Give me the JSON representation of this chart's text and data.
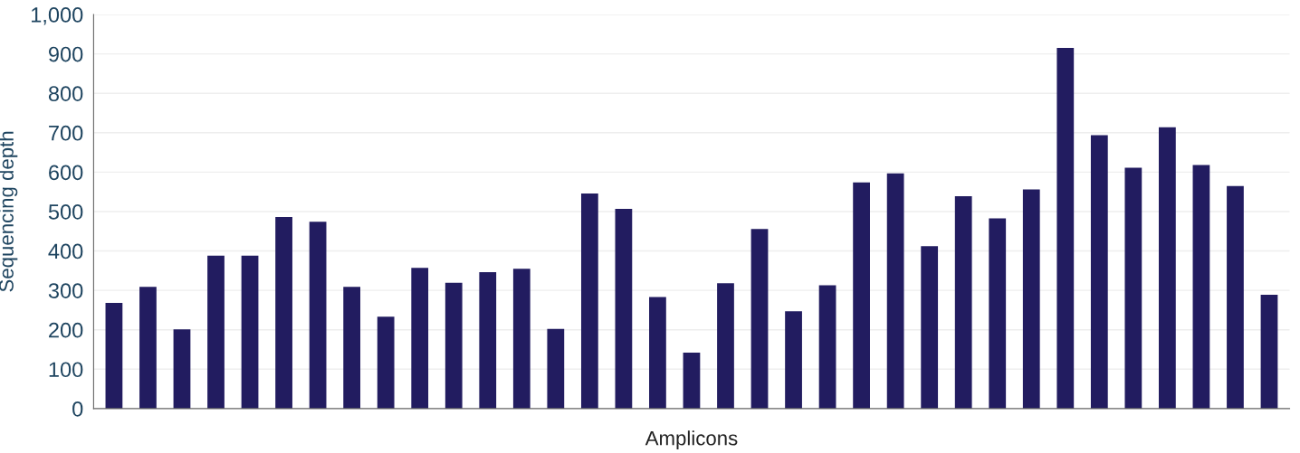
{
  "chart_data": {
    "type": "bar",
    "xlabel": "Amplicons",
    "ylabel": "Sequencing depth",
    "categories": [
      null,
      null,
      null,
      null,
      null,
      null,
      null,
      null,
      null,
      null,
      null,
      null,
      null,
      null,
      null,
      null,
      null,
      null,
      null,
      null,
      null,
      null,
      null,
      null,
      null,
      null,
      null,
      null,
      null,
      null,
      null,
      null,
      null,
      null,
      null
    ],
    "values": [
      268,
      309,
      201,
      388,
      388,
      486,
      474,
      309,
      233,
      357,
      319,
      346,
      355,
      202,
      546,
      507,
      283,
      142,
      318,
      456,
      247,
      313,
      574,
      597,
      412,
      539,
      483,
      556,
      915,
      694,
      611,
      714,
      618,
      565,
      289
    ],
    "color": "#221c60",
    "ylim": [
      0,
      1000
    ],
    "yticks": [
      0,
      100,
      200,
      300,
      400,
      500,
      600,
      700,
      800,
      {
        "value": 900,
        "label": "900"
      },
      {
        "value": 1000,
        "label": "1,000"
      }
    ],
    "grid": "y"
  }
}
